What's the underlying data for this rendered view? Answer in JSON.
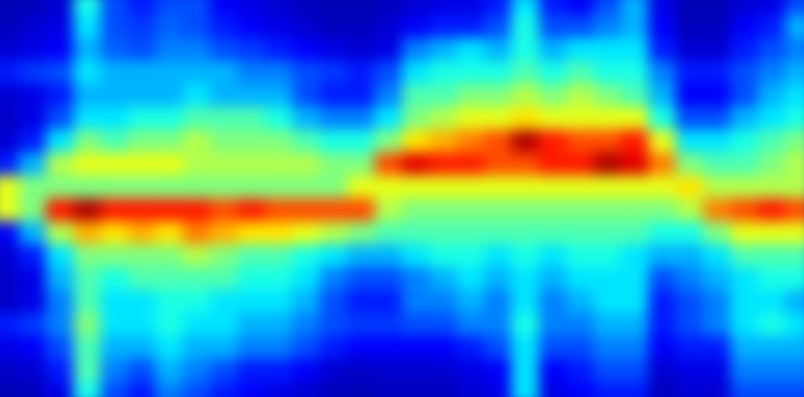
{
  "chart_data": {
    "type": "heatmap",
    "tick_labels": false,
    "zlim": [
      0,
      1
    ],
    "cells": [
      [
        0.05,
        0.06,
        0.08,
        0.15,
        0.08,
        0.07,
        0.08,
        0.15,
        0.6,
        0.6,
        0.12,
        0.08,
        0.07,
        0.07,
        0.15,
        0.1,
        0.07,
        0.05
      ],
      [
        0.06,
        0.08,
        0.1,
        0.18,
        0.1,
        0.1,
        0.15,
        0.3,
        0.5,
        0.5,
        0.3,
        0.15,
        0.1,
        0.1,
        0.18,
        0.12,
        0.08,
        0.06
      ],
      [
        0.08,
        0.1,
        0.12,
        0.2,
        0.15,
        0.2,
        0.35,
        0.55,
        0.5,
        0.85,
        0.55,
        0.35,
        0.3,
        0.25,
        0.25,
        0.2,
        0.15,
        0.1
      ],
      [
        0.4,
        0.35,
        0.3,
        0.35,
        0.3,
        0.35,
        0.5,
        0.6,
        0.5,
        0.95,
        0.7,
        0.5,
        0.45,
        0.45,
        0.5,
        0.45,
        0.45,
        0.4
      ],
      [
        0.2,
        0.2,
        0.22,
        0.3,
        0.3,
        0.35,
        0.45,
        0.6,
        0.5,
        0.85,
        0.65,
        0.5,
        0.4,
        0.35,
        0.35,
        0.3,
        0.25,
        0.2
      ],
      [
        0.15,
        0.18,
        0.2,
        0.3,
        0.3,
        0.4,
        0.5,
        0.6,
        0.5,
        0.85,
        0.7,
        0.5,
        0.45,
        0.35,
        0.35,
        0.3,
        0.2,
        0.15
      ],
      [
        0.2,
        0.22,
        0.25,
        0.3,
        0.3,
        0.4,
        0.5,
        0.6,
        0.5,
        0.85,
        0.65,
        0.5,
        0.45,
        0.4,
        0.4,
        0.35,
        0.3,
        0.25
      ],
      [
        0.2,
        0.2,
        0.25,
        0.3,
        0.35,
        0.45,
        0.55,
        0.55,
        0.5,
        0.85,
        0.75,
        0.55,
        0.45,
        0.4,
        0.35,
        0.3,
        0.25,
        0.2
      ],
      [
        0.12,
        0.15,
        0.2,
        0.3,
        0.3,
        0.45,
        0.5,
        0.55,
        0.5,
        0.8,
        0.7,
        0.5,
        0.45,
        0.35,
        0.35,
        0.3,
        0.2,
        0.15
      ],
      [
        0.1,
        0.12,
        0.18,
        0.25,
        0.3,
        0.45,
        0.5,
        0.55,
        0.5,
        0.85,
        0.65,
        0.45,
        0.4,
        0.35,
        0.3,
        0.25,
        0.15,
        0.12
      ],
      [
        0.08,
        0.1,
        0.15,
        0.25,
        0.3,
        0.4,
        0.5,
        0.55,
        0.5,
        0.8,
        0.65,
        0.45,
        0.4,
        0.35,
        0.3,
        0.25,
        0.15,
        0.1
      ],
      [
        0.06,
        0.08,
        0.12,
        0.2,
        0.2,
        0.3,
        0.45,
        0.55,
        0.5,
        0.8,
        0.6,
        0.4,
        0.35,
        0.3,
        0.25,
        0.2,
        0.12,
        0.08
      ],
      [
        0.05,
        0.06,
        0.1,
        0.18,
        0.15,
        0.25,
        0.4,
        0.5,
        0.5,
        0.8,
        0.55,
        0.35,
        0.25,
        0.2,
        0.2,
        0.15,
        0.08,
        0.06
      ],
      [
        0.05,
        0.06,
        0.08,
        0.15,
        0.15,
        0.25,
        0.4,
        0.5,
        0.6,
        0.8,
        0.5,
        0.3,
        0.2,
        0.15,
        0.18,
        0.12,
        0.07,
        0.05
      ],
      [
        0.06,
        0.08,
        0.1,
        0.2,
        0.25,
        0.35,
        0.5,
        0.8,
        0.6,
        0.55,
        0.45,
        0.3,
        0.2,
        0.15,
        0.18,
        0.12,
        0.08,
        0.06
      ],
      [
        0.08,
        0.12,
        0.25,
        0.35,
        0.45,
        0.5,
        0.65,
        0.9,
        0.6,
        0.5,
        0.45,
        0.35,
        0.25,
        0.25,
        0.2,
        0.12,
        0.08,
        0.06
      ],
      [
        0.1,
        0.15,
        0.3,
        0.4,
        0.45,
        0.55,
        0.7,
        0.85,
        0.6,
        0.5,
        0.45,
        0.4,
        0.3,
        0.25,
        0.2,
        0.12,
        0.08,
        0.06
      ],
      [
        0.1,
        0.15,
        0.35,
        0.4,
        0.5,
        0.6,
        0.75,
        0.85,
        0.6,
        0.5,
        0.45,
        0.4,
        0.35,
        0.3,
        0.25,
        0.15,
        0.1,
        0.08
      ],
      [
        0.15,
        0.2,
        0.3,
        0.4,
        0.5,
        0.6,
        0.8,
        0.8,
        0.6,
        0.5,
        0.45,
        0.35,
        0.3,
        0.25,
        0.25,
        0.2,
        0.12,
        0.1
      ],
      [
        0.35,
        0.4,
        0.4,
        0.45,
        0.55,
        0.65,
        0.95,
        0.8,
        0.6,
        0.5,
        0.45,
        0.4,
        0.35,
        0.35,
        0.4,
        0.35,
        0.35,
        0.35
      ],
      [
        0.15,
        0.2,
        0.3,
        0.4,
        0.5,
        0.6,
        0.85,
        0.85,
        0.6,
        0.5,
        0.45,
        0.35,
        0.3,
        0.25,
        0.25,
        0.2,
        0.12,
        0.1
      ],
      [
        0.12,
        0.2,
        0.35,
        0.45,
        0.55,
        0.6,
        0.8,
        0.85,
        0.6,
        0.5,
        0.45,
        0.4,
        0.35,
        0.3,
        0.25,
        0.2,
        0.15,
        0.12
      ],
      [
        0.2,
        0.25,
        0.35,
        0.4,
        0.5,
        0.6,
        0.8,
        0.95,
        0.6,
        0.5,
        0.45,
        0.4,
        0.35,
        0.35,
        0.3,
        0.25,
        0.2,
        0.15
      ],
      [
        0.3,
        0.3,
        0.35,
        0.4,
        0.45,
        0.6,
        0.85,
        0.9,
        0.6,
        0.5,
        0.45,
        0.35,
        0.35,
        0.35,
        0.3,
        0.25,
        0.2,
        0.15
      ],
      [
        0.1,
        0.12,
        0.15,
        0.25,
        0.3,
        0.4,
        0.6,
        0.75,
        0.6,
        0.5,
        0.4,
        0.3,
        0.2,
        0.15,
        0.15,
        0.12,
        0.08,
        0.06
      ],
      [
        0.05,
        0.06,
        0.08,
        0.15,
        0.12,
        0.2,
        0.35,
        0.5,
        0.65,
        0.55,
        0.4,
        0.3,
        0.25,
        0.2,
        0.2,
        0.15,
        0.1,
        0.08
      ],
      [
        0.05,
        0.06,
        0.08,
        0.15,
        0.12,
        0.2,
        0.35,
        0.45,
        0.55,
        0.75,
        0.5,
        0.35,
        0.3,
        0.25,
        0.25,
        0.15,
        0.1,
        0.08
      ],
      [
        0.08,
        0.12,
        0.15,
        0.2,
        0.2,
        0.3,
        0.4,
        0.45,
        0.55,
        0.8,
        0.6,
        0.45,
        0.35,
        0.35,
        0.35,
        0.3,
        0.25,
        0.2
      ],
      [
        0.1,
        0.15,
        0.2,
        0.25,
        0.3,
        0.35,
        0.45,
        0.5,
        0.55,
        0.85,
        0.6,
        0.45,
        0.4,
        0.35,
        0.4,
        0.3,
        0.25,
        0.2
      ],
      [
        0.2,
        0.3,
        0.25,
        0.3,
        0.35,
        0.4,
        0.5,
        0.55,
        0.55,
        0.8,
        0.6,
        0.45,
        0.4,
        0.3,
        0.35,
        0.3,
        0.25,
        0.2
      ]
    ]
  }
}
